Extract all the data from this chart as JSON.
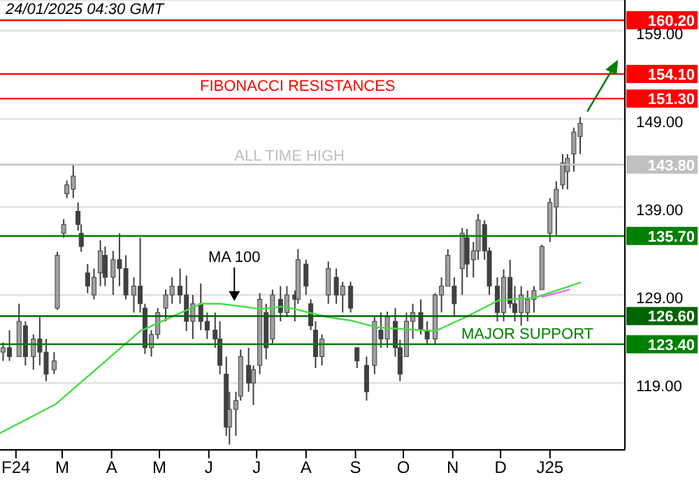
{
  "chart_data": {
    "type": "candlestick",
    "color": "#404040",
    "x": [
      "2024-01-24",
      "2024-01-28",
      "2024-02-03",
      "2024-02-07",
      "2024-02-12",
      "2024-02-16",
      "2024-02-20",
      "2024-02-25",
      "2024-02-27",
      "2024-03-02",
      "2024-03-04",
      "2024-03-08",
      "2024-03-11",
      "2024-03-13",
      "2024-03-17",
      "2024-03-21",
      "2024-03-25",
      "2024-03-28",
      "2024-04-02",
      "2024-04-06",
      "2024-04-10",
      "2024-04-15",
      "2024-04-19",
      "2024-04-22",
      "2024-04-26",
      "2024-04-30",
      "2024-05-05",
      "2024-05-09",
      "2024-05-14",
      "2024-05-18",
      "2024-05-22",
      "2024-05-27",
      "2024-05-31",
      "2024-06-05",
      "2024-06-08",
      "2024-06-12",
      "2024-06-14",
      "2024-06-18",
      "2024-06-21",
      "2024-06-26",
      "2024-06-29",
      "2024-07-03",
      "2024-07-07",
      "2024-07-11",
      "2024-07-16",
      "2024-07-20",
      "2024-07-25",
      "2024-07-27",
      "2024-08-01",
      "2024-08-04",
      "2024-08-07",
      "2024-08-11",
      "2024-08-15",
      "2024-08-20",
      "2024-08-24",
      "2024-08-29",
      "2024-09-02",
      "2024-09-08",
      "2024-09-13",
      "2024-09-17",
      "2024-09-21",
      "2024-09-26",
      "2024-09-29",
      "2024-10-03",
      "2024-10-07",
      "2024-10-12",
      "2024-10-16",
      "2024-10-21",
      "2024-10-25",
      "2024-10-29",
      "2024-11-02",
      "2024-11-07",
      "2024-11-10",
      "2024-11-14",
      "2024-11-17",
      "2024-11-21",
      "2024-11-24",
      "2024-11-29",
      "2024-12-03",
      "2024-12-07",
      "2024-12-10",
      "2024-12-14",
      "2024-12-18",
      "2024-12-22",
      "2024-12-27",
      "2025-01-01",
      "2025-01-05",
      "2025-01-09",
      "2025-01-12",
      "2025-01-16",
      "2025-01-20"
    ],
    "ohlc": [
      [
        122.5,
        123.6,
        121.5,
        123
      ],
      [
        123,
        125,
        121.5,
        122
      ],
      [
        122,
        128,
        122,
        126
      ],
      [
        125.5,
        126,
        121,
        122
      ],
      [
        122,
        124.5,
        120.5,
        124
      ],
      [
        124,
        126.5,
        121,
        122.5
      ],
      [
        122.5,
        124,
        119.2,
        120
      ],
      [
        120.5,
        122.5,
        120,
        121.5
      ],
      [
        127.5,
        133.9,
        127.3,
        133.5
      ],
      [
        136,
        137.6,
        135.5,
        137
      ],
      [
        140.5,
        142,
        140,
        141.5
      ],
      [
        141,
        143.8,
        140,
        142.5
      ],
      [
        138.5,
        139.5,
        136.3,
        137
      ],
      [
        136,
        137,
        133.9,
        134.5
      ],
      [
        131.5,
        132.5,
        129.2,
        130
      ],
      [
        129,
        132,
        128.5,
        131
      ],
      [
        131.5,
        135.2,
        130,
        134
      ],
      [
        133.5,
        134.5,
        130,
        131
      ],
      [
        131,
        134,
        129,
        133
      ],
      [
        133,
        136,
        130,
        132
      ],
      [
        132,
        133.5,
        128.5,
        129
      ],
      [
        129,
        131,
        127,
        130
      ],
      [
        130,
        135.5,
        127,
        128
      ],
      [
        127.5,
        128,
        122.3,
        123
      ],
      [
        123,
        125,
        122,
        124.5
      ],
      [
        124.5,
        127.5,
        124,
        127
      ],
      [
        127.5,
        129.6,
        126,
        129
      ],
      [
        129,
        131,
        128,
        130
      ],
      [
        130,
        132,
        128,
        129
      ],
      [
        129,
        131.2,
        124.9,
        126
      ],
      [
        126,
        129,
        124,
        128
      ],
      [
        128,
        130.3,
        125,
        126
      ],
      [
        126,
        127,
        124,
        125
      ],
      [
        125,
        127,
        123,
        124
      ],
      [
        124,
        126,
        120,
        121
      ],
      [
        120,
        122,
        113,
        114
      ],
      [
        114,
        118,
        112,
        116
      ],
      [
        116,
        118,
        113,
        117
      ],
      [
        117.5,
        122.8,
        117,
        122
      ],
      [
        121,
        123,
        118,
        119
      ],
      [
        119,
        121,
        116.5,
        120.5
      ],
      [
        121,
        129.2,
        120,
        128.5
      ],
      [
        127,
        128,
        121.7,
        123
      ],
      [
        124,
        129.6,
        123.5,
        129
      ],
      [
        128.5,
        130,
        126,
        127
      ],
      [
        127,
        130,
        126.5,
        129
      ],
      [
        129,
        129.5,
        126,
        128.5
      ],
      [
        128.5,
        134.2,
        128,
        133
      ],
      [
        132.5,
        133,
        129,
        130
      ],
      [
        128,
        128.5,
        125,
        125.5
      ],
      [
        125,
        126,
        120.7,
        122
      ],
      [
        122,
        124.5,
        121,
        124
      ],
      [
        129,
        132.8,
        128,
        132
      ],
      [
        131,
        132,
        128,
        129
      ],
      [
        129,
        130.5,
        127,
        130
      ],
      [
        130,
        130.5,
        127,
        127.5
      ],
      [
        123,
        123.1,
        120.7,
        121.5
      ],
      [
        121,
        122,
        117,
        118
      ],
      [
        121,
        126.5,
        120,
        126
      ],
      [
        125,
        127,
        123,
        124
      ],
      [
        124,
        127.1,
        123,
        126.5
      ],
      [
        126,
        127.5,
        122,
        123
      ],
      [
        123,
        123.9,
        119.2,
        120
      ],
      [
        122,
        127,
        122,
        126
      ],
      [
        126,
        128,
        124,
        127
      ],
      [
        127,
        128.5,
        124.5,
        125
      ],
      [
        125,
        126,
        123.3,
        124
      ],
      [
        124,
        129.2,
        123.3,
        129
      ],
      [
        129,
        131,
        127,
        130
      ],
      [
        130,
        134.2,
        130,
        133.5
      ],
      [
        130,
        131,
        126.5,
        128
      ],
      [
        132,
        136.6,
        129,
        136
      ],
      [
        135.5,
        136.5,
        131,
        132.5
      ],
      [
        133,
        135,
        131,
        134
      ],
      [
        134,
        138.2,
        133,
        137.5
      ],
      [
        137,
        137.5,
        133,
        134
      ],
      [
        134,
        134.4,
        129,
        130
      ],
      [
        130,
        131,
        126,
        127
      ],
      [
        127,
        131.9,
        126,
        131
      ],
      [
        131,
        133,
        127.5,
        128
      ],
      [
        128,
        130,
        126,
        127
      ],
      [
        127,
        130,
        125.5,
        129
      ],
      [
        127,
        129.5,
        126,
        128.5
      ],
      [
        128.5,
        130,
        127,
        129.5
      ],
      [
        129.6,
        134.7,
        129.6,
        134.5
      ],
      [
        136,
        140,
        135,
        139.5
      ],
      [
        139,
        141.9,
        135.8,
        141
      ],
      [
        141.5,
        145,
        141,
        144
      ],
      [
        143,
        145,
        141,
        144.5
      ],
      [
        145,
        148,
        143,
        147.5
      ],
      [
        147,
        149.2,
        145,
        148.5
      ]
    ],
    "series": [
      {
        "type": "line",
        "color": "#44dd44",
        "x": [
          "2024-01-22",
          "2024-02-26",
          "2024-04-19",
          "2024-05-27",
          "2024-06-08",
          "2024-07-04",
          "2024-07-18",
          "2024-08-14",
          "2024-08-29",
          "2024-09-15",
          "2024-10-21",
          "2024-11-07",
          "2024-11-30",
          "2024-12-23",
          "2025-01-05",
          "2025-01-20"
        ],
        "values": [
          113.3,
          116.6,
          124.9,
          128.0,
          128.0,
          127.4,
          127.7,
          126.5,
          126.1,
          125.3,
          124.9,
          126.3,
          128.4,
          128.7,
          129.5,
          130.4
        ]
      },
      {
        "type": "line",
        "color": "#ee66ee",
        "x": [
          "2024-12-27",
          "2025-01-07",
          "2025-01-13"
        ],
        "values": [
          128.8,
          129.3,
          129.6
        ]
      }
    ],
    "xlim": [
      "2024-01-22",
      "2025-02-17"
    ],
    "xticks": [
      {
        "value": "2024-02-01",
        "label": "F24"
      },
      {
        "value": "2024-03-01",
        "label": "M"
      },
      {
        "value": "2024-04-01",
        "label": "A"
      },
      {
        "value": "2024-05-01",
        "label": "M"
      },
      {
        "value": "2024-06-01",
        "label": "J"
      },
      {
        "value": "2024-07-01",
        "label": "J"
      },
      {
        "value": "2024-08-01",
        "label": "A"
      },
      {
        "value": "2024-09-01",
        "label": "S"
      },
      {
        "value": "2024-10-01",
        "label": "O"
      },
      {
        "value": "2024-11-01",
        "label": "N"
      },
      {
        "value": "2024-12-01",
        "label": "D"
      },
      {
        "value": "2025-01-01",
        "label": "J25"
      }
    ],
    "ylim": [
      111.4,
      162.5
    ],
    "yticks": [
      {
        "value": 119,
        "label": "119.00"
      },
      {
        "value": 129,
        "label": "129.00"
      },
      {
        "value": 139,
        "label": "139.00"
      },
      {
        "value": 149,
        "label": "149.00"
      },
      {
        "value": 159,
        "label": "159.00"
      }
    ],
    "grid": "y",
    "ref_lines": [
      {
        "axis": "y",
        "value": 160.2,
        "label": "160.20",
        "color": "#ff0000"
      },
      {
        "axis": "y",
        "value": 154.1,
        "label": "154.10",
        "color": "#ff0000"
      },
      {
        "axis": "y",
        "value": 151.3,
        "label": "151.30",
        "color": "#ff0000"
      },
      {
        "axis": "y",
        "value": 143.8,
        "label": "143.80",
        "color": "#c0c0c0"
      },
      {
        "axis": "y",
        "value": 135.7,
        "label": "135.70",
        "color": "#008000"
      },
      {
        "axis": "y",
        "value": 126.6,
        "label": "126.60",
        "color": "#006400"
      },
      {
        "axis": "y",
        "value": 123.4,
        "label": "123.40",
        "color": "#008000"
      }
    ],
    "annotations": [
      "24/01/2025 04:30 GMT",
      "FIBONACCI RESISTANCES",
      {
        "text": "ALL TIME HIGH",
        "x": "2024-06-17",
        "y": 143.8
      },
      {
        "text": "MA 100",
        "x": "2024-06-17",
        "y": 128.0
      },
      "MAJOR SUPPORT"
    ]
  }
}
